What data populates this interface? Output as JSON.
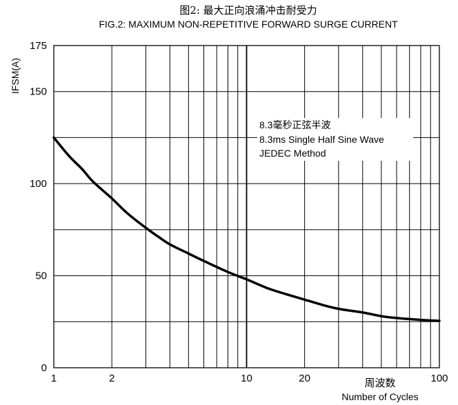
{
  "chart_data": {
    "type": "line",
    "title": "图2: 最大正向浪涌冲击耐受力",
    "subtitle": "FIG.2: MAXIMUM NON-REPETITIVE FORWARD SURGE CURRENT",
    "ylabel": "IFSM(A)",
    "xlabel_cn": "周波数",
    "xlabel": "Number of Cycles",
    "x_scale": "log",
    "xlim": [
      1,
      100
    ],
    "ylim": [
      0,
      175
    ],
    "x_tick_labels": [
      "1",
      "2",
      "10",
      "20",
      "100"
    ],
    "x_tick_values": [
      1,
      2,
      10,
      20,
      100
    ],
    "y_tick_labels": [
      "0",
      "50",
      "100",
      "150",
      "175"
    ],
    "y_tick_values": [
      0,
      50,
      100,
      150,
      175
    ],
    "y_minor_grid": [
      25,
      75,
      125
    ],
    "grid": true,
    "annotation": [
      "8.3毫秒正弦半波",
      "8.3ms Single Half Sine Wave",
      "JEDEC Method"
    ],
    "series": [
      {
        "x": [
          1,
          1.2,
          1.4,
          1.6,
          2,
          2.4,
          3,
          3.5,
          4,
          5,
          6,
          8,
          10,
          13,
          16,
          20,
          25,
          30,
          40,
          50,
          60,
          80,
          100
        ],
        "y": [
          125,
          115,
          108,
          101,
          92,
          84,
          76,
          71,
          67,
          62,
          58,
          52,
          48,
          43,
          40,
          37,
          34,
          32,
          30,
          28,
          27,
          26,
          25.5
        ]
      }
    ]
  }
}
